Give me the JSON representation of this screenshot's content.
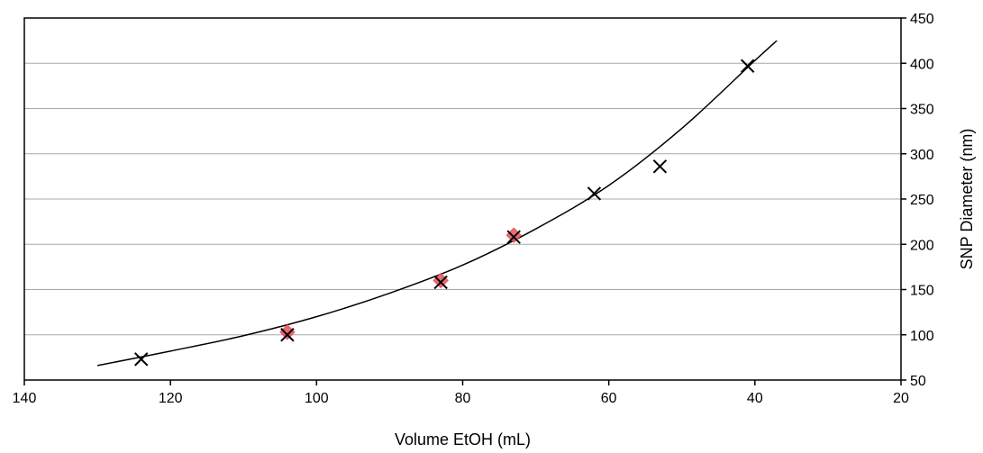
{
  "chart_data": {
    "type": "scatter",
    "xlabel": "Volume EtOH (mL)",
    "ylabel": "SNP Diameter (nm)",
    "xlim": [
      140,
      20
    ],
    "ylim": [
      50,
      450
    ],
    "x_reversed": true,
    "y_axis_side": "right",
    "xticks": [
      140,
      120,
      100,
      80,
      60,
      40,
      20
    ],
    "yticks": [
      50,
      100,
      150,
      200,
      250,
      300,
      350,
      400,
      450
    ],
    "grid": {
      "horizontal": true,
      "vertical": false
    },
    "series": [
      {
        "marker": "x",
        "color": "#000000",
        "points": [
          {
            "x": 124,
            "y": 73
          },
          {
            "x": 104,
            "y": 100
          },
          {
            "x": 83,
            "y": 158
          },
          {
            "x": 73,
            "y": 208
          },
          {
            "x": 62,
            "y": 256
          },
          {
            "x": 53,
            "y": 286
          },
          {
            "x": 41,
            "y": 397
          }
        ]
      },
      {
        "marker": "diamond",
        "color": "#e8525a",
        "points": [
          {
            "x": 104,
            "y": 103
          },
          {
            "x": 83,
            "y": 160
          },
          {
            "x": 73,
            "y": 210
          }
        ]
      }
    ],
    "fit_curve": {
      "color": "#000000",
      "points": [
        {
          "x": 130,
          "y": 66
        },
        {
          "x": 120,
          "y": 82
        },
        {
          "x": 110,
          "y": 99
        },
        {
          "x": 100,
          "y": 120
        },
        {
          "x": 90,
          "y": 146
        },
        {
          "x": 80,
          "y": 177
        },
        {
          "x": 70,
          "y": 217
        },
        {
          "x": 60,
          "y": 265
        },
        {
          "x": 50,
          "y": 328
        },
        {
          "x": 40,
          "y": 403
        },
        {
          "x": 37,
          "y": 425
        }
      ]
    }
  }
}
